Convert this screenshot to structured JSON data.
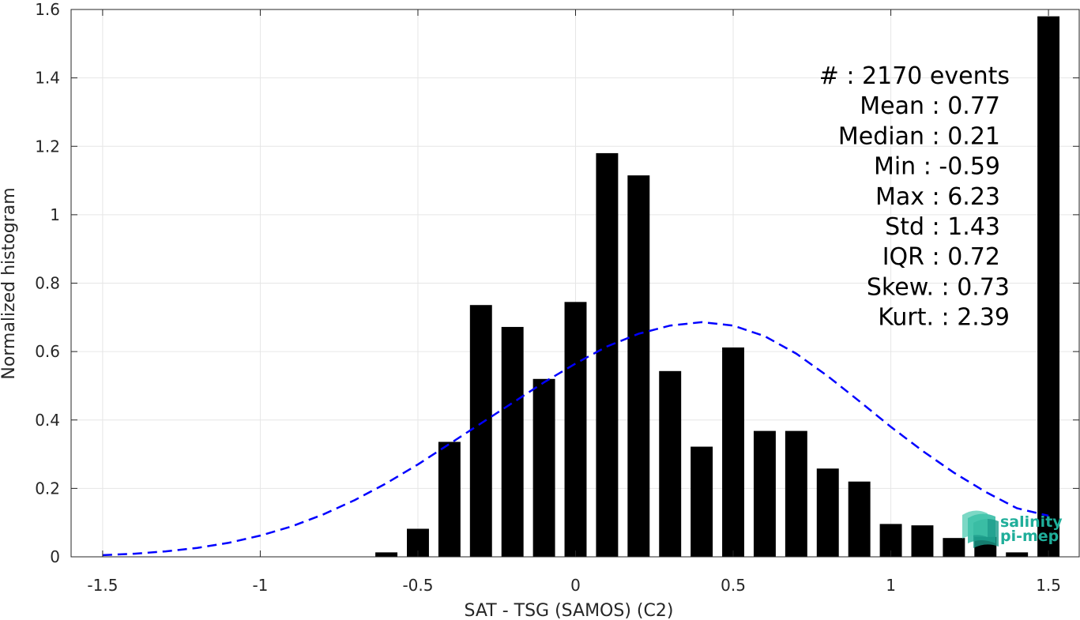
{
  "chart_data": {
    "type": "bar",
    "xlabel": "SAT - TSG (SAMOS) (C2)",
    "ylabel": "Normalized histogram",
    "xlim": [
      -1.6,
      1.6
    ],
    "ylim": [
      0,
      1.6
    ],
    "xticks": [
      -1.5,
      -1,
      -0.5,
      0,
      0.5,
      1,
      1.5
    ],
    "xtick_labels": [
      "-1.5",
      "-1",
      "-0.5",
      "0",
      "0.5",
      "1",
      "1.5"
    ],
    "yticks": [
      0,
      0.2,
      0.4,
      0.6,
      0.8,
      1,
      1.2,
      1.4,
      1.6
    ],
    "ytick_labels": [
      "0",
      "0.2",
      "0.4",
      "0.6",
      "0.8",
      "1",
      "1.2",
      "1.4",
      "1.6"
    ],
    "grid": true,
    "bar_color": "#000000",
    "bar_width": 0.07,
    "bars": {
      "x": [
        -0.6,
        -0.5,
        -0.4,
        -0.3,
        -0.2,
        -0.1,
        0,
        0.1,
        0.2,
        0.3,
        0.4,
        0.5,
        0.6,
        0.7,
        0.8,
        0.9,
        1.0,
        1.1,
        1.2,
        1.3,
        1.4,
        1.5
      ],
      "values": [
        0.013,
        0.082,
        0.336,
        0.736,
        0.672,
        0.52,
        0.745,
        1.18,
        1.115,
        0.543,
        0.322,
        0.612,
        0.368,
        0.368,
        0.258,
        0.22,
        0.096,
        0.092,
        0.055,
        0.058,
        0.013,
        1.58
      ]
    },
    "fit_curve": {
      "style": "dashed",
      "color": "#0000ff",
      "x": [
        -1.5,
        -1.4,
        -1.3,
        -1.2,
        -1.1,
        -1.0,
        -0.9,
        -0.8,
        -0.7,
        -0.6,
        -0.5,
        -0.4,
        -0.3,
        -0.2,
        -0.1,
        0,
        0.1,
        0.2,
        0.3,
        0.4,
        0.5,
        0.6,
        0.7,
        0.8,
        0.9,
        1.0,
        1.1,
        1.2,
        1.3,
        1.4,
        1.5
      ],
      "y": [
        0.005,
        0.009,
        0.016,
        0.026,
        0.041,
        0.062,
        0.089,
        0.124,
        0.166,
        0.215,
        0.27,
        0.33,
        0.39,
        0.45,
        0.51,
        0.565,
        0.615,
        0.652,
        0.676,
        0.686,
        0.676,
        0.645,
        0.594,
        0.528,
        0.455,
        0.38,
        0.31,
        0.246,
        0.19,
        0.142,
        0.12
      ]
    },
    "stats": [
      "#  : 2170 events",
      "Mean : 0.77",
      "Median : 0.21",
      "Min : -0.59",
      "Max : 6.23",
      "Std : 1.43",
      "IQR : 0.72",
      "Skew. : 0.73",
      "Kurt. : 2.39"
    ],
    "logo": {
      "line1": "salinity",
      "line2": "pi-mep",
      "color": "#1fae9a"
    }
  }
}
